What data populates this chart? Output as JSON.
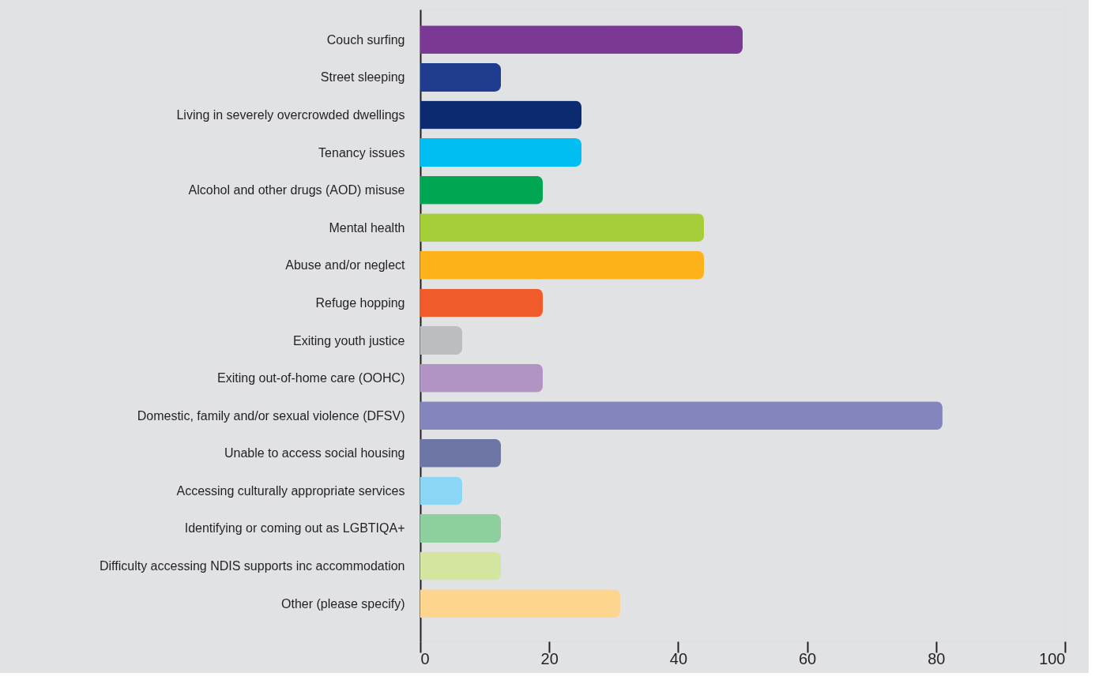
{
  "chart_data": {
    "type": "bar",
    "orientation": "horizontal",
    "categories": [
      "Couch surfing",
      "Street sleeping",
      "Living in severely overcrowded dwellings",
      "Tenancy issues",
      "Alcohol and other drugs (AOD) misuse",
      "Mental health",
      "Abuse and/or neglect",
      "Refuge hopping",
      "Exiting youth justice",
      "Exiting out-of-home care (OOHC)",
      "Domestic, family and/or sexual violence (DFSV)",
      "Unable to access social housing",
      "Accessing culturally appropriate services",
      "Identifying or coming out as LGBTIQA+",
      "Difficulty accessing NDIS supports inc accommodation",
      "Other (please specify)"
    ],
    "values": [
      50,
      12.5,
      25,
      25,
      19,
      44,
      44,
      19,
      6.5,
      19,
      81,
      12.5,
      6.5,
      12.5,
      12.5,
      31
    ],
    "colors": [
      "#7b3895",
      "#1f3c8f",
      "#0b2a6f",
      "#00bdf2",
      "#00a651",
      "#a6ce39",
      "#fdb219",
      "#f15a29",
      "#bcbdc0",
      "#b294c4",
      "#8386bd",
      "#6e76a6",
      "#8cd6f5",
      "#8ecf9e",
      "#d3e59e",
      "#fed58f"
    ],
    "xlim": [
      0,
      100
    ],
    "xticks": [
      0,
      20,
      40,
      60,
      80,
      100
    ],
    "grid": false,
    "legend": false
  }
}
